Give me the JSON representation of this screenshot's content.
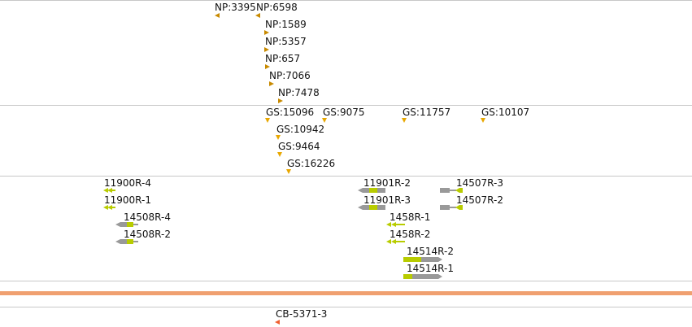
{
  "colors": {
    "track_line": "#c8c8c8",
    "reference_bar": "#f0a070",
    "np_marker": "#c88a00",
    "gs_marker": "#e8a700",
    "feature_green": "#b8cc00",
    "feature_grey": "#999999",
    "cb_marker": "#f06030"
  },
  "tracks": {
    "np": [
      {
        "label": "NP:3395",
        "marker": "left"
      },
      {
        "label": "NP:6598",
        "marker": "left"
      },
      {
        "label": "NP:1589",
        "marker": "right"
      },
      {
        "label": "NP:5357",
        "marker": "right"
      },
      {
        "label": "NP:657",
        "marker": "right"
      },
      {
        "label": "NP:7066",
        "marker": "right"
      },
      {
        "label": "NP:7478",
        "marker": "right"
      }
    ],
    "gs": [
      {
        "label": "GS:15096"
      },
      {
        "label": "GS:9075"
      },
      {
        "label": "GS:11757"
      },
      {
        "label": "GS:10107"
      },
      {
        "label": "GS:10942"
      },
      {
        "label": "GS:9464"
      },
      {
        "label": "GS:16226"
      }
    ],
    "features": [
      {
        "label": "11900R-4"
      },
      {
        "label": "11900R-1"
      },
      {
        "label": "14508R-4"
      },
      {
        "label": "14508R-2"
      },
      {
        "label": "11901R-2"
      },
      {
        "label": "11901R-3"
      },
      {
        "label": "14507R-3"
      },
      {
        "label": "14507R-2"
      },
      {
        "label": "1458R-1"
      },
      {
        "label": "1458R-2"
      },
      {
        "label": "14514R-2"
      },
      {
        "label": "14514R-1"
      }
    ],
    "cb": [
      {
        "label": "CB-5371-3"
      }
    ]
  }
}
